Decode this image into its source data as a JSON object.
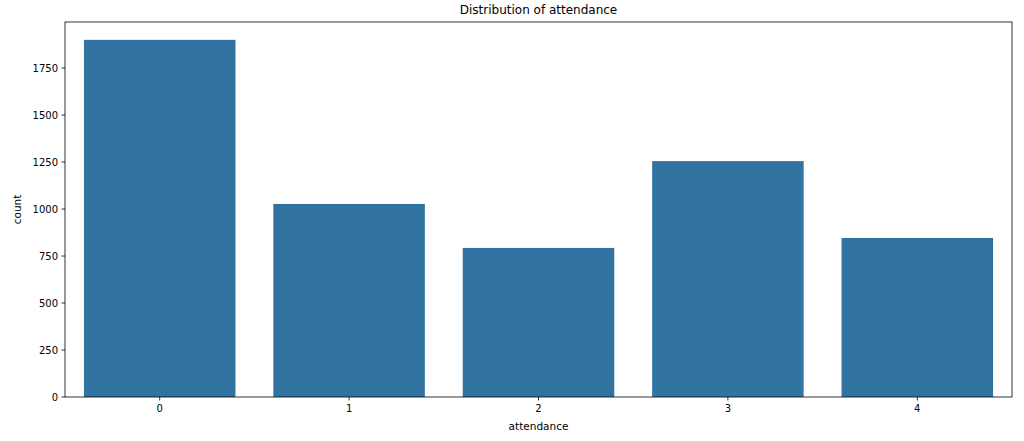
{
  "chart_data": {
    "type": "bar",
    "title": "Distribution of attendance",
    "x_label": "attendance",
    "y_label": "count",
    "categories": [
      "0",
      "1",
      "2",
      "3",
      "4"
    ],
    "values": [
      1900,
      1027,
      793,
      1255,
      846
    ],
    "color": "#3274a1",
    "ylim": [
      0,
      1995
    ],
    "yticks": [
      0,
      250,
      500,
      750,
      1000,
      1250,
      1500,
      1750
    ],
    "grid": false
  }
}
